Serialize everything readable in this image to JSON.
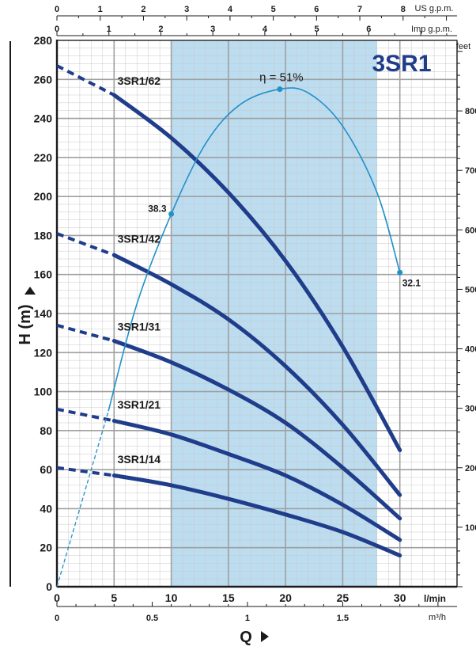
{
  "chart_data": {
    "type": "line",
    "title": "3SR1",
    "xlabel": "Q",
    "ylabel": "H (m)",
    "xlim": [
      0,
      35
    ],
    "ylim": [
      0,
      280
    ],
    "x_unit": "l/min",
    "x_ticks": [
      0,
      5,
      10,
      15,
      20,
      25,
      30
    ],
    "y_ticks": [
      0,
      20,
      40,
      60,
      80,
      100,
      120,
      140,
      160,
      180,
      200,
      220,
      240,
      260,
      280
    ],
    "feet_axis": {
      "unit": "feet",
      "ticks": [
        100,
        200,
        300,
        400,
        500,
        600,
        700,
        800
      ],
      "tick_labels": [
        "100",
        "200",
        "300",
        "400",
        "500",
        "600",
        "700",
        "800"
      ]
    },
    "m3h_axis": {
      "unit": "m³/h",
      "ticks": [
        0,
        0.5,
        1,
        1.5
      ],
      "tick_labels": [
        "0",
        "0.5",
        "1",
        "1.5"
      ]
    },
    "us_gpm_axis": {
      "unit": "US g.p.m.",
      "ticks": [
        0,
        1,
        2,
        3,
        4,
        5,
        6,
        7,
        8
      ],
      "tick_labels": [
        "0",
        "1",
        "2",
        "3",
        "4",
        "5",
        "6",
        "7",
        "8"
      ]
    },
    "imp_gpm_axis": {
      "unit": "Imp g.p.m.",
      "ticks": [
        0,
        1,
        2,
        3,
        4,
        5,
        6
      ],
      "tick_labels": [
        "0",
        "1",
        "2",
        "3",
        "4",
        "5",
        "6"
      ]
    },
    "recommended_range": [
      10,
      28
    ],
    "series": [
      {
        "name": "3SR1/62",
        "label_x": 5.3,
        "label_y": 254,
        "dashed": {
          "x": [
            0,
            5
          ],
          "y": [
            267,
            252
          ]
        },
        "solid": {
          "x": [
            5,
            10,
            15,
            20,
            25,
            30
          ],
          "y": [
            252,
            230,
            202,
            167,
            123,
            70
          ]
        }
      },
      {
        "name": "3SR1/42",
        "label_x": 5.3,
        "label_y": 173,
        "dashed": {
          "x": [
            0,
            5
          ],
          "y": [
            181,
            170
          ]
        },
        "solid": {
          "x": [
            5,
            10,
            15,
            20,
            25,
            30
          ],
          "y": [
            170,
            155,
            137,
            113,
            83,
            47
          ]
        }
      },
      {
        "name": "3SR1/31",
        "label_x": 5.3,
        "label_y": 128,
        "dashed": {
          "x": [
            0,
            5
          ],
          "y": [
            134,
            126
          ]
        },
        "solid": {
          "x": [
            5,
            10,
            15,
            20,
            25,
            30
          ],
          "y": [
            126,
            115,
            101,
            84,
            61,
            35
          ]
        }
      },
      {
        "name": "3SR1/21",
        "label_x": 5.3,
        "label_y": 88,
        "dashed": {
          "x": [
            0,
            5
          ],
          "y": [
            91,
            85
          ]
        },
        "solid": {
          "x": [
            5,
            10,
            15,
            20,
            25,
            30
          ],
          "y": [
            85,
            78,
            68,
            57,
            42,
            24
          ]
        }
      },
      {
        "name": "3SR1/14",
        "label_x": 5.3,
        "label_y": 60,
        "dashed": {
          "x": [
            0,
            5
          ],
          "y": [
            61,
            57
          ]
        },
        "solid": {
          "x": [
            5,
            10,
            15,
            20,
            25,
            30
          ],
          "y": [
            57,
            52,
            45,
            37,
            28,
            16
          ]
        }
      }
    ],
    "efficiency_curve": {
      "name": "η = 51%",
      "dashed": {
        "x": [
          0,
          4.5
        ],
        "y": [
          0,
          90
        ]
      },
      "solid": {
        "x": [
          4.5,
          7,
          10,
          13,
          16,
          19.5,
          22,
          25,
          28,
          30
        ],
        "y": [
          90,
          145,
          191,
          227,
          247,
          255,
          253,
          236,
          202,
          161
        ]
      },
      "markers": [
        {
          "x": 10,
          "y": 191,
          "label": "38.3"
        },
        {
          "x": 19.5,
          "y": 255,
          "label": ""
        },
        {
          "x": 30,
          "y": 161,
          "label": "32.1"
        }
      ],
      "peak_label": "η = 51%"
    },
    "colors": {
      "curve": "#1f3d8a",
      "efficiency": "#2191c9",
      "band": "#bcdcf0",
      "grid": "#c8c8c8",
      "axis": "#1a1a1a",
      "title": "#1f3d8a"
    }
  }
}
